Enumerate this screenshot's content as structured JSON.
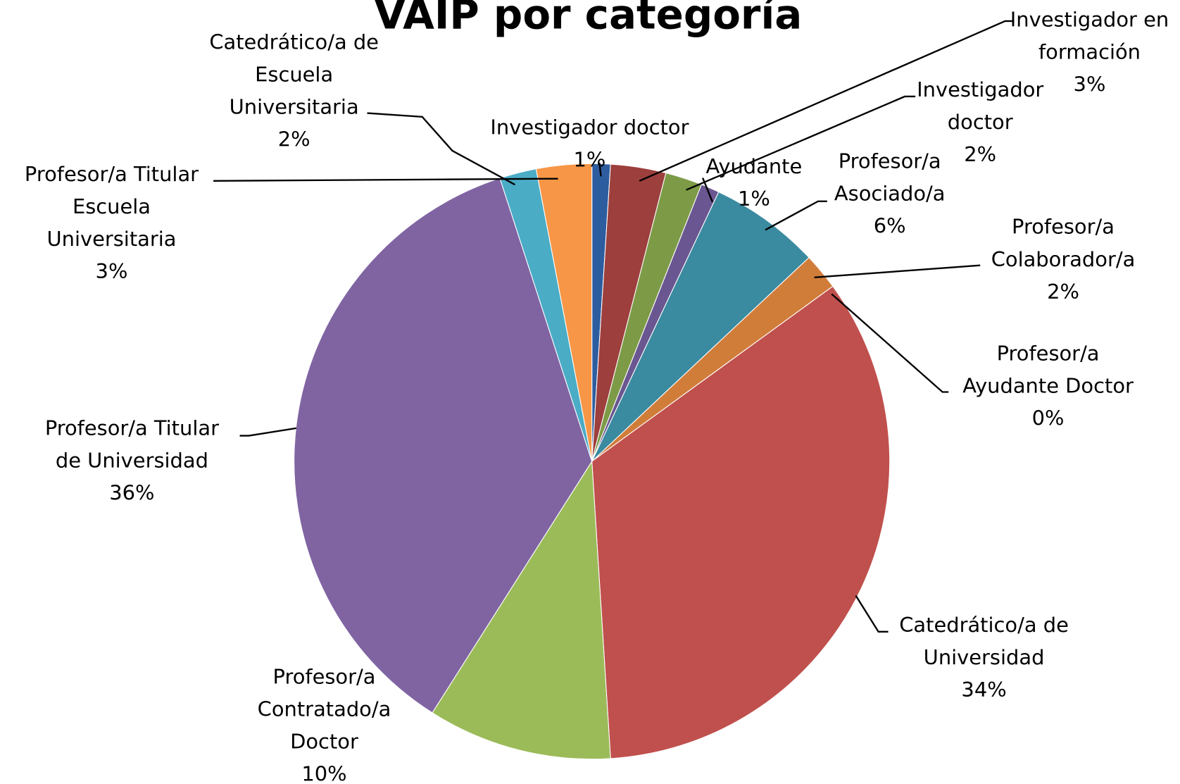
{
  "chart_data": {
    "type": "pie",
    "title": "VAIP por categoría",
    "categories": [
      "Investigador doctor",
      "Investigador en\nformación",
      "Investigador\ndoctor",
      "Ayudante",
      "Profesor/a\nAsociado/a",
      "Profesor/a\nColaborador/a",
      "Profesor/a\nAyudante Doctor",
      "Catedrático/a de\nUniversidad",
      "Profesor/a\nContratado/a\nDoctor",
      "Profesor/a Titular\nde Universidad",
      "Catedrático/a de\nEscuela\nUniversitaria",
      "Profesor/a Titular\nEscuela\nUniversitaria"
    ],
    "values": [
      1,
      3,
      2,
      1,
      6,
      2,
      0,
      34,
      10,
      36,
      2,
      3
    ],
    "value_labels": [
      "1%",
      "3%",
      "2%",
      "1%",
      "6%",
      "2%",
      "0%",
      "34%",
      "10%",
      "36%",
      "2%",
      "3%"
    ],
    "colors": [
      "#2e5d9f",
      "#9c3f3d",
      "#7d9b47",
      "#6a5690",
      "#3a8aa0",
      "#d17d3a",
      "#4f81bd",
      "#c0504d",
      "#9bbb59",
      "#8064a2",
      "#4bacc6",
      "#f79646"
    ]
  }
}
